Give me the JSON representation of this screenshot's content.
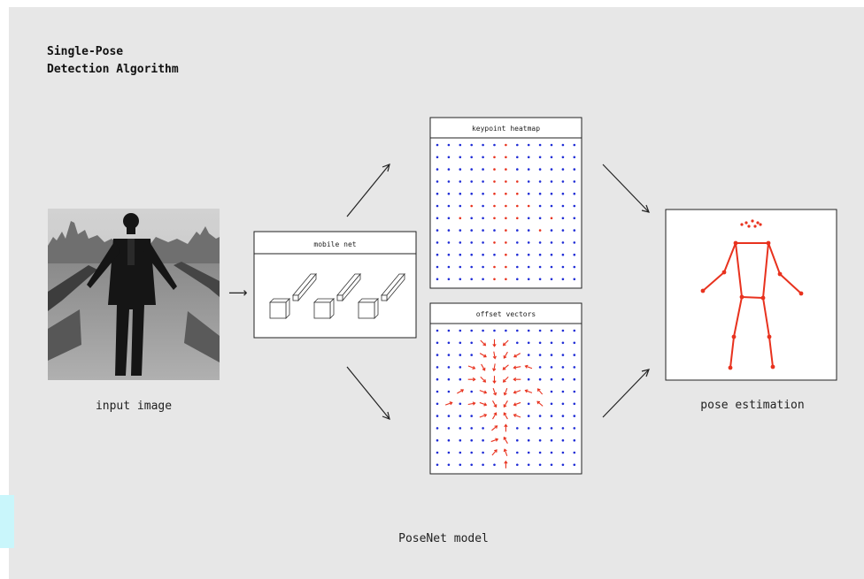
{
  "title_line1": "Single-Pose",
  "title_line2": "Detection Algorithm",
  "input_caption": "input image",
  "network_label": "mobile net",
  "heatmap_label": "keypoint heatmap",
  "offset_label": "offset vectors",
  "output_caption": "pose estimation",
  "model_caption": "PoseNet model",
  "arrow_glyph": "⟶",
  "colors": {
    "background": "#e7e7e7",
    "grid_dot": "#1f2cd6",
    "highlight": "#e8321e",
    "line": "#222222"
  }
}
